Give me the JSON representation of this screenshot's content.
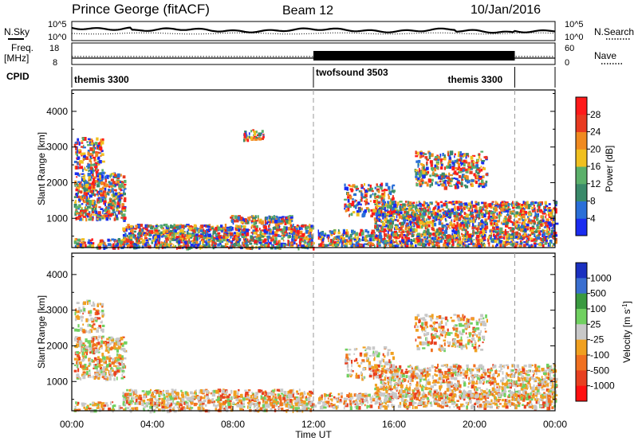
{
  "header": {
    "station": "Prince George (fitACF)",
    "beam": "Beam 12",
    "date": "10/Jan/2016"
  },
  "noise_panel": {
    "left_label": "N.Sky",
    "right_label": "N.Search",
    "left_ticks": [
      "10^5",
      "10^0"
    ],
    "right_ticks": [
      "10^5",
      "10^0"
    ]
  },
  "freq_panel": {
    "left_label_1": "Freq.",
    "left_label_2": "[MHz]",
    "right_label": "Nave",
    "left_ticks": [
      "18",
      "8"
    ],
    "right_ticks": [
      "60",
      "0"
    ]
  },
  "cpid": {
    "label": "CPID",
    "segments": [
      {
        "name": "themis 3300",
        "start_hour": 0,
        "end_hour": 12
      },
      {
        "name": "twofsound 3503",
        "start_hour": 12,
        "end_hour": 22
      },
      {
        "name": "themis 3300",
        "start_hour": 22,
        "end_hour": 24
      }
    ]
  },
  "chart_data": [
    {
      "type": "heatmap",
      "title": "",
      "xlabel": "",
      "ylabel": "Slant Range [km]",
      "xlim_hours": [
        0,
        24
      ],
      "ylim": [
        180,
        4600
      ],
      "yticks": [
        "1000",
        "2000",
        "3000",
        "4000"
      ],
      "colorbar": {
        "label": "Power [dB]",
        "ticks": [
          "4",
          "8",
          "12",
          "16",
          "20",
          "24",
          "28"
        ],
        "colors": [
          "#1a2cf0",
          "#2a6fd8",
          "#3a8a6a",
          "#5bb06a",
          "#f0c020",
          "#f08a20",
          "#e83a20",
          "#ff1a1a"
        ]
      }
    },
    {
      "type": "heatmap",
      "title": "",
      "xlabel": "Time UT",
      "ylabel": "Slant Range [km]",
      "xlim_hours": [
        0,
        24
      ],
      "ylim": [
        180,
        4600
      ],
      "yticks": [
        "1000",
        "2000",
        "3000",
        "4000"
      ],
      "xticks": [
        "00:00",
        "04:00",
        "08:00",
        "12:00",
        "16:00",
        "20:00",
        "00:00"
      ],
      "colorbar": {
        "label": "Velocity [m s",
        "label_sup": "-1",
        "label_end": "]",
        "ticks": [
          "1000",
          "500",
          "100",
          "25",
          "-25",
          "-100",
          "-500",
          "-1000"
        ],
        "colors": [
          "#1a30c0",
          "#3a6fd0",
          "#3a9a40",
          "#70d060",
          "#c8c8c8",
          "#f0a020",
          "#f07020",
          "#e84020",
          "#ff1010"
        ]
      }
    }
  ]
}
